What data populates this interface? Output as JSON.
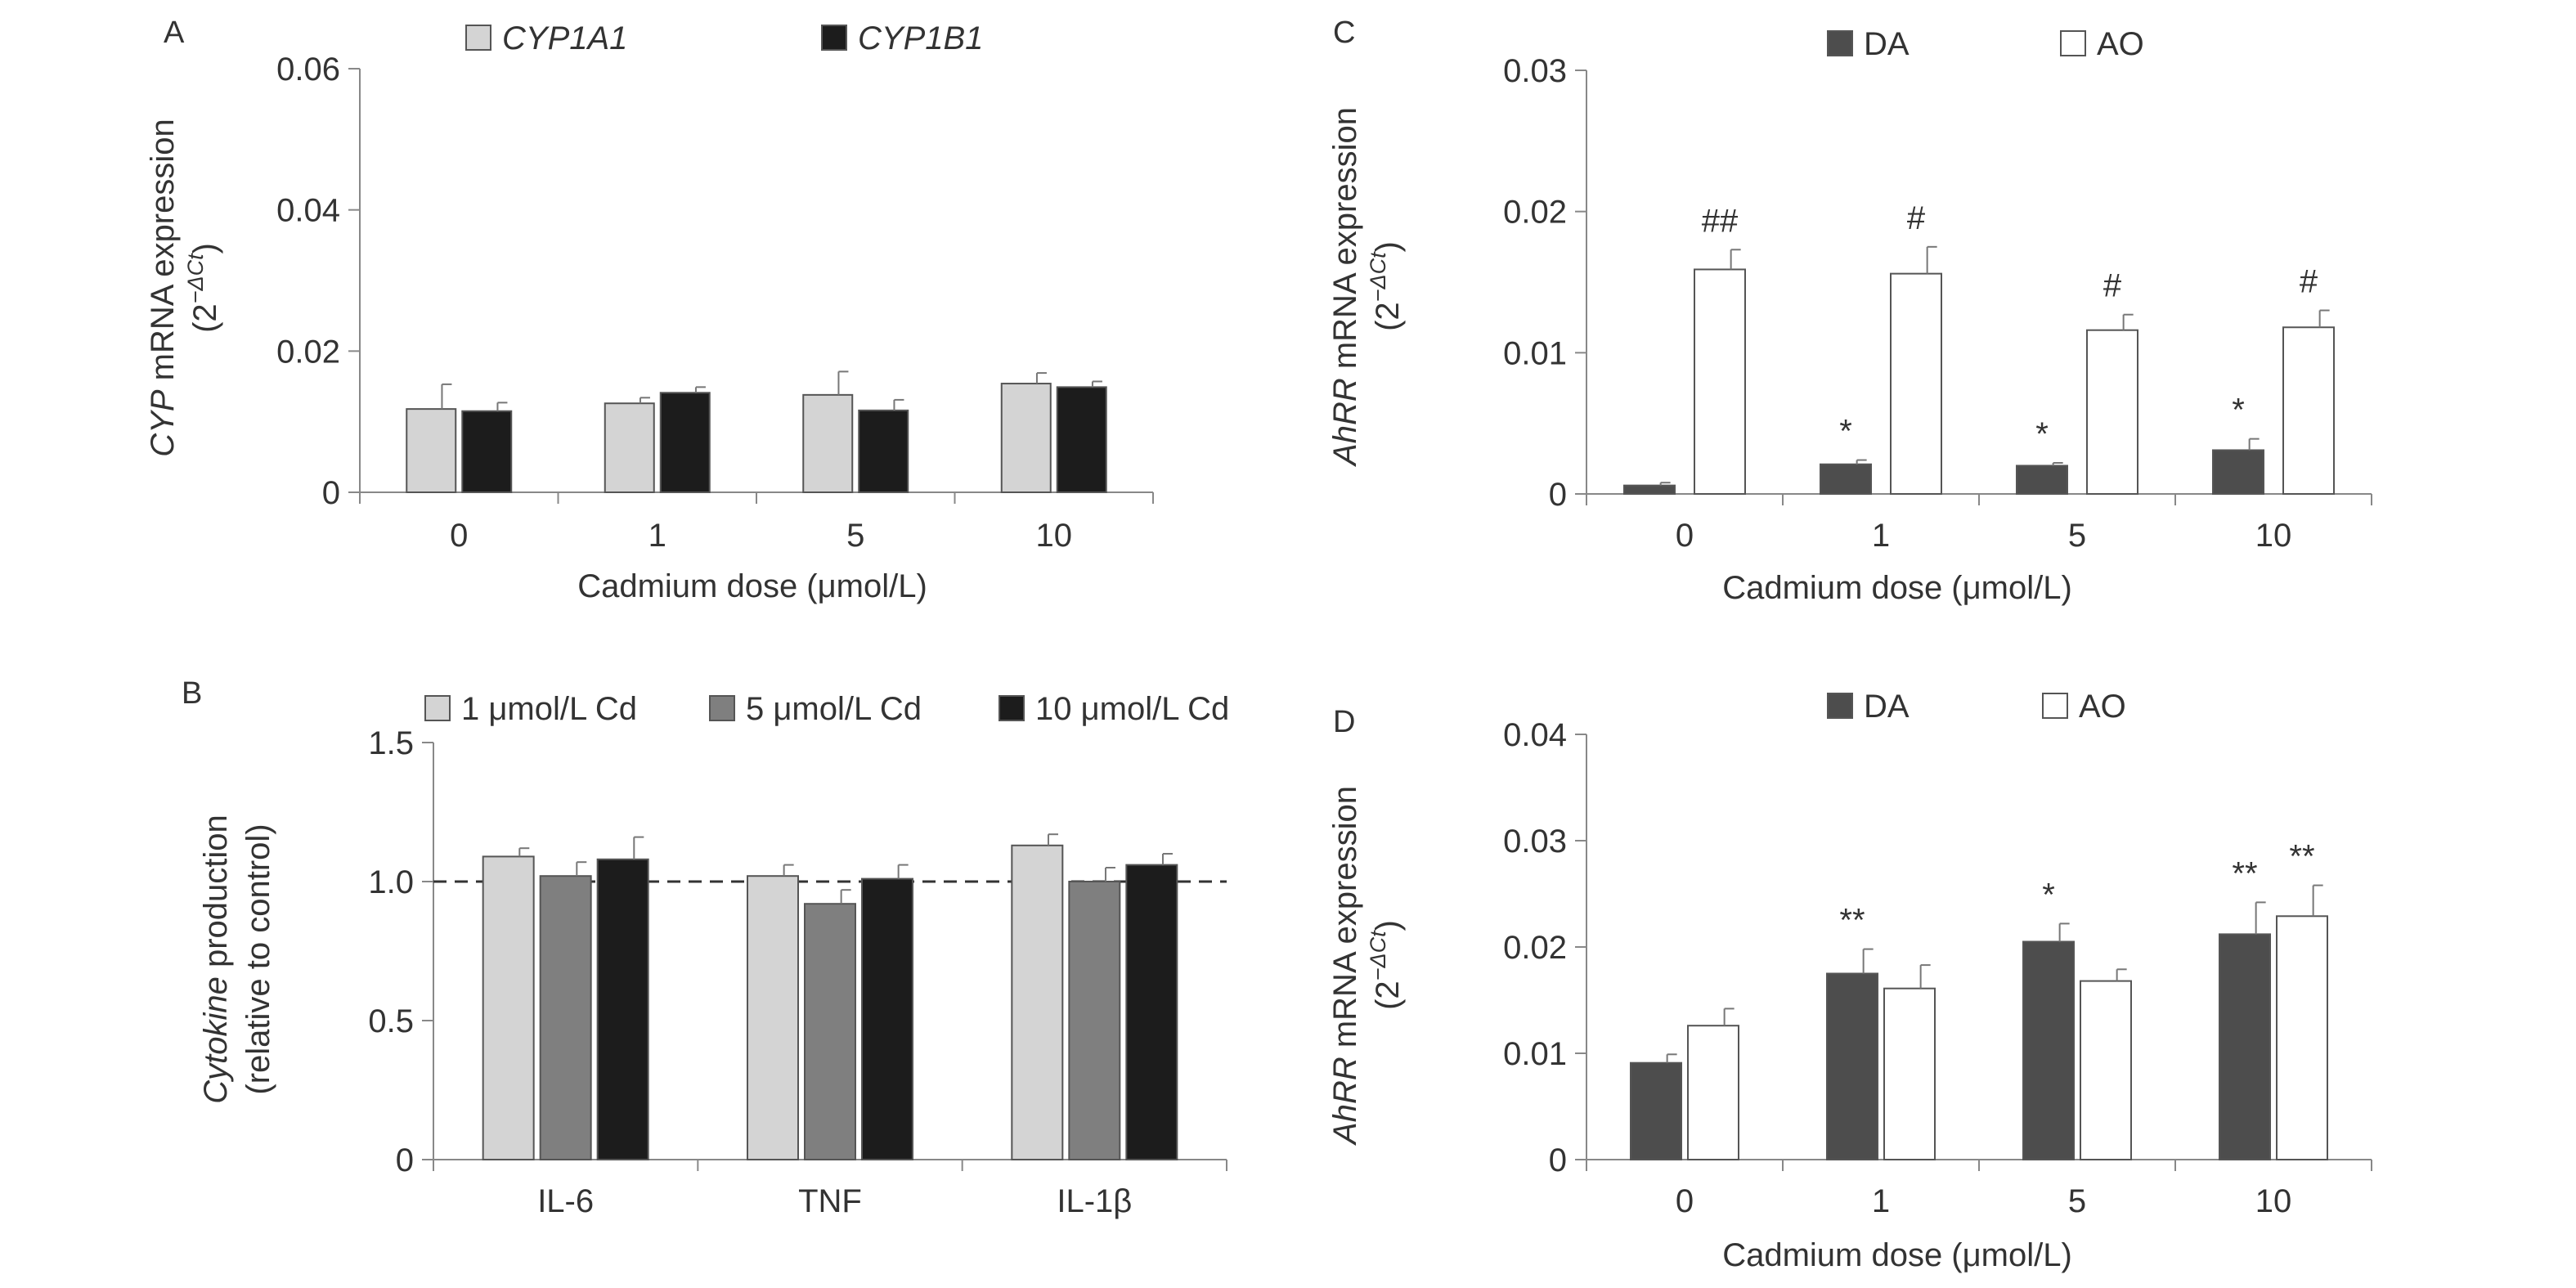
{
  "colors": {
    "axis": "#888888",
    "text": "#333333",
    "light": "#d4d4d4",
    "mid": "#7f7f7f",
    "dark": "#1c1c1c",
    "charcoal": "#4d4d4d",
    "white": "#ffffff",
    "bar_stroke": "#555555"
  },
  "chart_data": [
    {
      "panel": "A",
      "type": "bar",
      "xlabel": "Cadmium dose (μmol/L)",
      "ylabel_italic": "CYP",
      "ylabel_rest": " mRNA expression",
      "ylabel_line2": "(2",
      "ylabel_sup": "−ΔCt",
      "ylabel_close": ")",
      "categories": [
        "0",
        "1",
        "5",
        "10"
      ],
      "ylim": [
        0,
        0.06
      ],
      "yticks": [
        0,
        0.02,
        0.04,
        0.06
      ],
      "ytick_labels": [
        "0",
        "0.02",
        "0.04",
        "0.06"
      ],
      "legend_italic": true,
      "series": [
        {
          "name": "CYP1A1",
          "color_key": "light",
          "values": [
            0.0118,
            0.0126,
            0.0138,
            0.0154
          ],
          "errors": [
            0.0035,
            0.0008,
            0.0033,
            0.0015
          ]
        },
        {
          "name": "CYP1B1",
          "color_key": "dark",
          "values": [
            0.0115,
            0.0141,
            0.0116,
            0.0149
          ],
          "errors": [
            0.0012,
            0.0008,
            0.0015,
            0.0008
          ]
        }
      ],
      "annotations": []
    },
    {
      "panel": "B",
      "type": "bar",
      "xlabel": "",
      "ylabel_italic": "Cytokine",
      "ylabel_rest": " production",
      "ylabel_line2": "(relative to control)",
      "ylabel_sup": "",
      "ylabel_close": "",
      "categories": [
        "IL-6",
        "TNF",
        "IL-1β"
      ],
      "ylim": [
        0,
        1.5
      ],
      "yticks": [
        0,
        0.5,
        1.0,
        1.5
      ],
      "ytick_labels": [
        "0",
        "0.5",
        "1.0",
        "1.5"
      ],
      "reference_line": 1.0,
      "legend_italic": false,
      "series": [
        {
          "name": "1 μmol/L Cd",
          "color_key": "light",
          "values": [
            1.09,
            1.02,
            1.13
          ],
          "errors": [
            0.03,
            0.04,
            0.04
          ]
        },
        {
          "name": "5 μmol/L Cd",
          "color_key": "mid",
          "values": [
            1.02,
            0.92,
            1.0
          ],
          "errors": [
            0.05,
            0.05,
            0.05
          ]
        },
        {
          "name": "10 μmol/L Cd",
          "color_key": "dark",
          "values": [
            1.08,
            1.01,
            1.06
          ],
          "errors": [
            0.08,
            0.05,
            0.04
          ]
        }
      ],
      "annotations": []
    },
    {
      "panel": "C",
      "type": "bar",
      "xlabel": "Cadmium dose (μmol/L)",
      "ylabel_italic": "AhRR",
      "ylabel_rest": " mRNA expression",
      "ylabel_line2": "(2",
      "ylabel_sup": "−ΔCt",
      "ylabel_close": ")",
      "categories": [
        "0",
        "1",
        "5",
        "10"
      ],
      "ylim": [
        0,
        0.03
      ],
      "yticks": [
        0,
        0.01,
        0.02,
        0.03
      ],
      "ytick_labels": [
        "0",
        "0.01",
        "0.02",
        "0.03"
      ],
      "legend_italic": false,
      "series": [
        {
          "name": "DA",
          "color_key": "charcoal",
          "values": [
            0.0006,
            0.0021,
            0.002,
            0.0031
          ],
          "errors": [
            0.0002,
            0.0003,
            0.0002,
            0.0008
          ]
        },
        {
          "name": "AO",
          "color_key": "white",
          "values": [
            0.0159,
            0.0156,
            0.0116,
            0.0118
          ],
          "errors": [
            0.0014,
            0.0019,
            0.0011,
            0.0012
          ]
        }
      ],
      "annotations": [
        {
          "category": 0,
          "series": 1,
          "text": "##"
        },
        {
          "category": 1,
          "series": 0,
          "text": "*"
        },
        {
          "category": 1,
          "series": 1,
          "text": "#"
        },
        {
          "category": 2,
          "series": 0,
          "text": "*"
        },
        {
          "category": 2,
          "series": 1,
          "text": "#"
        },
        {
          "category": 3,
          "series": 0,
          "text": "*"
        },
        {
          "category": 3,
          "series": 1,
          "text": "#"
        }
      ]
    },
    {
      "panel": "D",
      "type": "bar",
      "xlabel": "Cadmium dose (μmol/L)",
      "ylabel_italic": "AhRR",
      "ylabel_rest": " mRNA expression",
      "ylabel_line2": "(2",
      "ylabel_sup": "−ΔCt",
      "ylabel_close": ")",
      "categories": [
        "0",
        "1",
        "5",
        "10"
      ],
      "ylim": [
        0,
        0.04
      ],
      "yticks": [
        0,
        0.01,
        0.02,
        0.03,
        0.04
      ],
      "ytick_labels": [
        "0",
        "0.01",
        "0.02",
        "0.03",
        "0.04"
      ],
      "legend_italic": false,
      "series": [
        {
          "name": "DA",
          "color_key": "charcoal",
          "values": [
            0.0091,
            0.0175,
            0.0205,
            0.0212
          ],
          "errors": [
            0.0008,
            0.0023,
            0.0017,
            0.003
          ]
        },
        {
          "name": "AO",
          "color_key": "white",
          "values": [
            0.0126,
            0.0161,
            0.0168,
            0.0229
          ],
          "errors": [
            0.0016,
            0.0022,
            0.0011,
            0.0029
          ]
        }
      ],
      "annotations": [
        {
          "category": 1,
          "series": 0,
          "text": "**"
        },
        {
          "category": 2,
          "series": 0,
          "text": "*"
        },
        {
          "category": 3,
          "series": 0,
          "text": "**"
        },
        {
          "category": 3,
          "series": 1,
          "text": "**"
        }
      ]
    }
  ]
}
